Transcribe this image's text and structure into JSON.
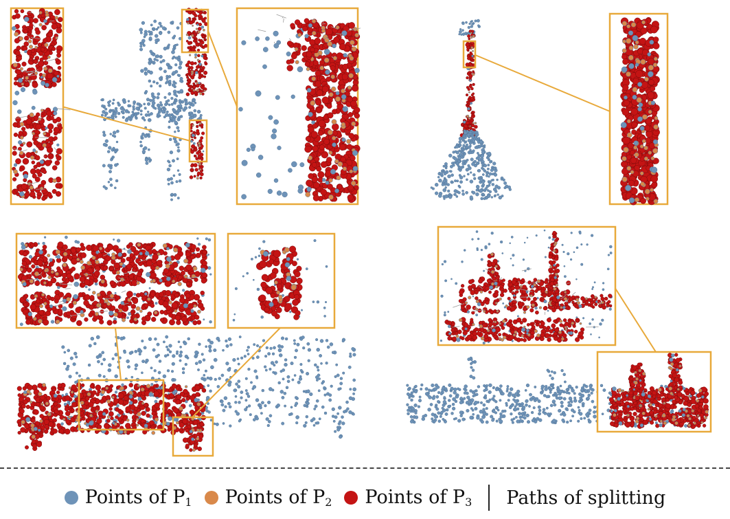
{
  "colors": {
    "p1": "#6e93b8",
    "p2": "#d9894a",
    "p3": "#c41414",
    "box": "#e8a93a",
    "path": "#9a9a9a"
  },
  "panels": [
    {
      "object": "chair"
    },
    {
      "object": "lamp"
    },
    {
      "object": "table"
    },
    {
      "object": "airplane"
    }
  ],
  "legend": {
    "p1": {
      "text": "Points of P",
      "sub": "1"
    },
    "p2": {
      "text": "Points of P",
      "sub": "2"
    },
    "p3": {
      "text": "Points of P",
      "sub": "3"
    },
    "paths": "Paths of splitting"
  }
}
